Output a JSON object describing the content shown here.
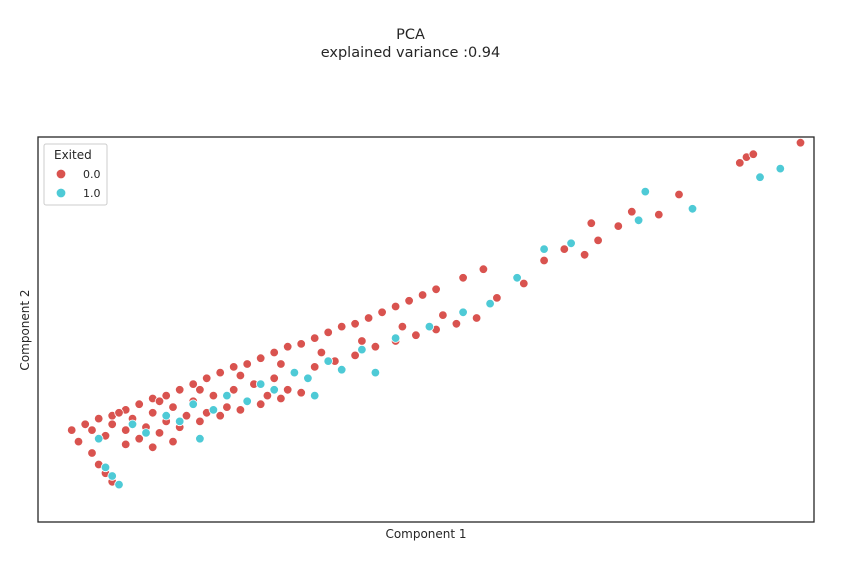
{
  "chart_data": {
    "type": "scatter",
    "title": "PCA",
    "subtitle": "explained variance :0.94",
    "xlabel": "Component 1",
    "ylabel": "Component 2",
    "xlim": [
      -1.3,
      10.2
    ],
    "ylim": [
      -3.2,
      10.2
    ],
    "ticks_visible": false,
    "grid": false,
    "legend": {
      "title": "Exited",
      "placement": "top-left",
      "entries": [
        {
          "label": "0.0",
          "color": "#d9534f"
        },
        {
          "label": "1.0",
          "color": "#4ecad6"
        }
      ]
    },
    "series": [
      {
        "name": "0.0",
        "color": "#d9534f",
        "points": [
          [
            -0.8,
            0.0
          ],
          [
            -0.6,
            0.2
          ],
          [
            -0.4,
            0.4
          ],
          [
            -0.2,
            0.5
          ],
          [
            0.0,
            0.7
          ],
          [
            0.2,
            0.9
          ],
          [
            0.4,
            1.1
          ],
          [
            0.6,
            1.2
          ],
          [
            0.8,
            1.4
          ],
          [
            1.0,
            1.6
          ],
          [
            1.2,
            1.8
          ],
          [
            1.4,
            2.0
          ],
          [
            1.6,
            2.2
          ],
          [
            1.8,
            2.3
          ],
          [
            2.0,
            2.5
          ],
          [
            2.2,
            2.7
          ],
          [
            2.4,
            2.9
          ],
          [
            2.6,
            3.0
          ],
          [
            2.8,
            3.2
          ],
          [
            3.0,
            3.4
          ],
          [
            3.2,
            3.6
          ],
          [
            3.4,
            3.7
          ],
          [
            3.6,
            3.9
          ],
          [
            3.8,
            4.1
          ],
          [
            4.0,
            4.3
          ],
          [
            4.2,
            4.5
          ],
          [
            4.4,
            4.7
          ],
          [
            4.6,
            4.9
          ],
          [
            5.0,
            5.3
          ],
          [
            5.3,
            5.6
          ],
          [
            -0.5,
            0.0
          ],
          [
            -0.2,
            0.2
          ],
          [
            0.1,
            0.4
          ],
          [
            0.4,
            0.6
          ],
          [
            0.7,
            0.8
          ],
          [
            1.0,
            1.0
          ],
          [
            1.3,
            1.2
          ],
          [
            1.6,
            1.4
          ],
          [
            1.9,
            1.6
          ],
          [
            2.2,
            1.8
          ],
          [
            2.5,
            2.0
          ],
          [
            2.8,
            2.2
          ],
          [
            3.1,
            2.4
          ],
          [
            3.4,
            2.6
          ],
          [
            3.7,
            2.9
          ],
          [
            4.0,
            3.1
          ],
          [
            4.3,
            3.3
          ],
          [
            4.6,
            3.5
          ],
          [
            4.9,
            3.7
          ],
          [
            5.2,
            3.9
          ],
          [
            -0.3,
            -0.2
          ],
          [
            0.0,
            0.0
          ],
          [
            0.3,
            0.1
          ],
          [
            0.6,
            0.3
          ],
          [
            0.9,
            0.5
          ],
          [
            1.2,
            0.6
          ],
          [
            1.5,
            0.8
          ],
          [
            1.8,
            1.0
          ],
          [
            2.1,
            1.2
          ],
          [
            2.4,
            1.4
          ],
          [
            -0.7,
            -0.4
          ],
          [
            -0.5,
            -0.8
          ],
          [
            -0.4,
            -1.2
          ],
          [
            -0.3,
            -1.5
          ],
          [
            -0.2,
            -1.8
          ],
          [
            0.0,
            -0.5
          ],
          [
            0.2,
            -0.3
          ],
          [
            0.5,
            -0.1
          ],
          [
            0.8,
            0.1
          ],
          [
            1.1,
            0.3
          ],
          [
            1.4,
            0.5
          ],
          [
            1.7,
            0.7
          ],
          [
            2.0,
            0.9
          ],
          [
            2.3,
            1.1
          ],
          [
            2.6,
            1.3
          ],
          [
            0.4,
            -0.6
          ],
          [
            0.7,
            -0.4
          ],
          [
            -0.1,
            0.6
          ],
          [
            0.5,
            1.0
          ],
          [
            1.1,
            1.4
          ],
          [
            1.7,
            1.9
          ],
          [
            2.3,
            2.3
          ],
          [
            2.9,
            2.7
          ],
          [
            3.5,
            3.1
          ],
          [
            4.1,
            3.6
          ],
          [
            4.7,
            4.0
          ],
          [
            5.5,
            4.6
          ],
          [
            5.9,
            5.1
          ],
          [
            6.2,
            5.9
          ],
          [
            6.5,
            6.3
          ],
          [
            6.8,
            6.1
          ],
          [
            7.0,
            6.6
          ],
          [
            6.9,
            7.2
          ],
          [
            7.3,
            7.1
          ],
          [
            7.5,
            7.6
          ],
          [
            7.9,
            7.5
          ],
          [
            8.2,
            8.2
          ],
          [
            9.1,
            9.3
          ],
          [
            9.2,
            9.5
          ],
          [
            9.3,
            9.6
          ],
          [
            10.0,
            10.0
          ]
        ]
      },
      {
        "name": "1.0",
        "color": "#4ecad6",
        "points": [
          [
            -0.4,
            -0.3
          ],
          [
            0.1,
            0.2
          ],
          [
            0.6,
            0.5
          ],
          [
            1.0,
            0.9
          ],
          [
            1.5,
            1.2
          ],
          [
            2.0,
            1.6
          ],
          [
            2.5,
            2.0
          ],
          [
            3.0,
            2.4
          ],
          [
            3.5,
            2.8
          ],
          [
            4.0,
            3.2
          ],
          [
            4.5,
            3.6
          ],
          [
            5.0,
            4.1
          ],
          [
            5.4,
            4.4
          ],
          [
            0.3,
            -0.1
          ],
          [
            0.8,
            0.3
          ],
          [
            1.3,
            0.7
          ],
          [
            1.8,
            1.0
          ],
          [
            2.2,
            1.4
          ],
          [
            2.7,
            1.8
          ],
          [
            3.2,
            2.1
          ],
          [
            -0.3,
            -1.3
          ],
          [
            -0.2,
            -1.6
          ],
          [
            -0.1,
            -1.9
          ],
          [
            1.1,
            -0.3
          ],
          [
            2.8,
            1.2
          ],
          [
            3.7,
            2.0
          ],
          [
            5.8,
            5.3
          ],
          [
            6.2,
            6.3
          ],
          [
            6.6,
            6.5
          ],
          [
            7.6,
            7.3
          ],
          [
            7.7,
            8.3
          ],
          [
            8.4,
            7.7
          ],
          [
            9.4,
            8.8
          ],
          [
            9.7,
            9.1
          ]
        ]
      }
    ]
  }
}
